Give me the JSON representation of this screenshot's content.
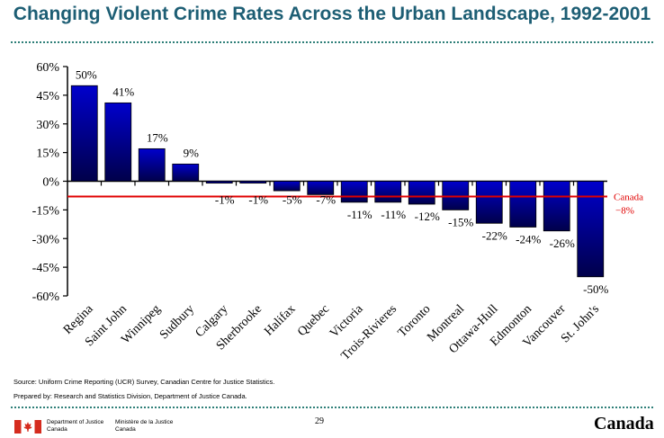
{
  "title": "Changing Violent Crime Rates Across the Urban Landscape, 1992-2001",
  "chart_data": {
    "type": "bar",
    "categories": [
      "Regina",
      "Saint John",
      "Winnipeg",
      "Sudbury",
      "Calgary",
      "Sherbrooke",
      "Halifax",
      "Quebec",
      "Victoria",
      "Trois-Rivieres",
      "Toronto",
      "Montreal",
      "Ottawa-Hull",
      "Edmonton",
      "Vancouver",
      "St. John's"
    ],
    "values": [
      50,
      41,
      17,
      9,
      -1,
      -1,
      -5,
      -7,
      -11,
      -11,
      -12,
      -15,
      -22,
      -24,
      -26,
      -50
    ],
    "data_labels": [
      "50%",
      "41%",
      "17%",
      "9%",
      "-1%",
      "-1%",
      "-5%",
      "-7%",
      "-11%",
      "-11%",
      "-12%",
      "-15%",
      "-22%",
      "-24%",
      "-26%",
      "-50%"
    ],
    "ylim": [
      -60,
      60
    ],
    "yticks": [
      60,
      45,
      30,
      15,
      0,
      -15,
      -30,
      -45,
      -60
    ],
    "ytick_labels": [
      "60%",
      "45%",
      "30%",
      "15%",
      "0%",
      "-15%",
      "-30%",
      "-45%",
      "-60%"
    ],
    "reference_line": {
      "value": -8,
      "label_line1": "Canada",
      "label_line2": "−8%",
      "color": "#e00000"
    },
    "bar_color_top": "#0000cc",
    "bar_color_bottom": "#00004a",
    "grid": false,
    "xlabel": "",
    "ylabel": ""
  },
  "source_text": "Source:  Uniform Crime Reporting (UCR) Survey, Canadian Centre for Justice Statistics.",
  "prepared_text": "Prepared by:  Research and Statistics Division, Department of Justice Canada.",
  "page_number": "29",
  "footer": {
    "dept_en_line1": "Department of Justice",
    "dept_en_line2": "Canada",
    "dept_fr_line1": "Ministère de la Justice",
    "dept_fr_line2": "Canada",
    "wordmark": "Canada"
  },
  "colors": {
    "title": "#1d5e74",
    "rule": "#2e7f78",
    "flag_red": "#d52b1e"
  }
}
